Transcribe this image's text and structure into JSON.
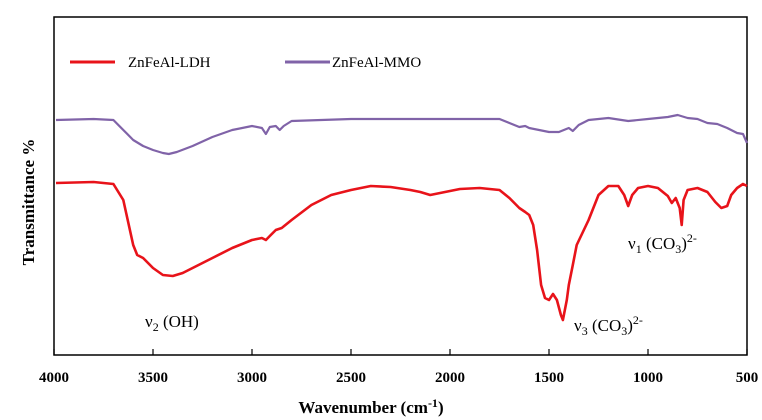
{
  "chart_data": {
    "type": "line",
    "xlabel_main": "Wavenumber (cm",
    "xlabel_sup": "-1",
    "xlabel_end": ")",
    "ylabel": "Transmittance %",
    "xlim": [
      4000,
      500
    ],
    "x_reversed": true,
    "xticks": [
      4000,
      3500,
      3000,
      2500,
      2000,
      1500,
      1000,
      500
    ],
    "yticks_shown": false,
    "grid": false,
    "legend_position": "top-left",
    "series": [
      {
        "name": "ZnFeAl-LDH",
        "color": "#e8131a",
        "points": [
          [
            3990,
            183
          ],
          [
            3800,
            182
          ],
          [
            3700,
            184
          ],
          [
            3650,
            200
          ],
          [
            3600,
            245
          ],
          [
            3580,
            255
          ],
          [
            3550,
            258
          ],
          [
            3500,
            268
          ],
          [
            3450,
            275
          ],
          [
            3400,
            276
          ],
          [
            3350,
            273
          ],
          [
            3300,
            268
          ],
          [
            3200,
            258
          ],
          [
            3100,
            248
          ],
          [
            3000,
            240
          ],
          [
            2950,
            238
          ],
          [
            2930,
            240
          ],
          [
            2910,
            236
          ],
          [
            2880,
            230
          ],
          [
            2850,
            228
          ],
          [
            2800,
            220
          ],
          [
            2700,
            205
          ],
          [
            2600,
            195
          ],
          [
            2500,
            190
          ],
          [
            2400,
            186
          ],
          [
            2300,
            187
          ],
          [
            2200,
            190
          ],
          [
            2150,
            192
          ],
          [
            2100,
            195
          ],
          [
            2050,
            193
          ],
          [
            1950,
            189
          ],
          [
            1850,
            188
          ],
          [
            1750,
            190
          ],
          [
            1700,
            198
          ],
          [
            1650,
            208
          ],
          [
            1620,
            212
          ],
          [
            1600,
            215
          ],
          [
            1580,
            225
          ],
          [
            1560,
            250
          ],
          [
            1540,
            285
          ],
          [
            1520,
            298
          ],
          [
            1500,
            300
          ],
          [
            1480,
            294
          ],
          [
            1460,
            300
          ],
          [
            1440,
            315
          ],
          [
            1430,
            320
          ],
          [
            1410,
            300
          ],
          [
            1400,
            285
          ],
          [
            1390,
            275
          ],
          [
            1380,
            265
          ],
          [
            1360,
            245
          ],
          [
            1300,
            220
          ],
          [
            1250,
            195
          ],
          [
            1200,
            186
          ],
          [
            1150,
            186
          ],
          [
            1120,
            195
          ],
          [
            1100,
            206
          ],
          [
            1080,
            195
          ],
          [
            1050,
            188
          ],
          [
            1000,
            186
          ],
          [
            950,
            188
          ],
          [
            900,
            196
          ],
          [
            880,
            203
          ],
          [
            860,
            198
          ],
          [
            840,
            208
          ],
          [
            830,
            225
          ],
          [
            820,
            200
          ],
          [
            800,
            190
          ],
          [
            750,
            188
          ],
          [
            700,
            192
          ],
          [
            660,
            202
          ],
          [
            630,
            208
          ],
          [
            600,
            206
          ],
          [
            580,
            195
          ],
          [
            550,
            188
          ],
          [
            520,
            184
          ],
          [
            500,
            186
          ]
        ]
      },
      {
        "name": "ZnFeAl-MMO",
        "color": "#8063a8",
        "points": [
          [
            3990,
            120
          ],
          [
            3800,
            119
          ],
          [
            3700,
            120
          ],
          [
            3650,
            130
          ],
          [
            3600,
            140
          ],
          [
            3550,
            146
          ],
          [
            3500,
            150
          ],
          [
            3450,
            153
          ],
          [
            3420,
            154
          ],
          [
            3380,
            152
          ],
          [
            3300,
            146
          ],
          [
            3200,
            137
          ],
          [
            3100,
            130
          ],
          [
            3000,
            126
          ],
          [
            2950,
            128
          ],
          [
            2930,
            134
          ],
          [
            2910,
            127
          ],
          [
            2880,
            126
          ],
          [
            2860,
            130
          ],
          [
            2840,
            126
          ],
          [
            2800,
            121
          ],
          [
            2500,
            119
          ],
          [
            2000,
            119
          ],
          [
            1750,
            119
          ],
          [
            1700,
            123
          ],
          [
            1650,
            127
          ],
          [
            1620,
            126
          ],
          [
            1600,
            128
          ],
          [
            1550,
            130
          ],
          [
            1500,
            132
          ],
          [
            1450,
            132
          ],
          [
            1400,
            128
          ],
          [
            1380,
            131
          ],
          [
            1350,
            125
          ],
          [
            1300,
            120
          ],
          [
            1200,
            118
          ],
          [
            1100,
            121
          ],
          [
            1000,
            119
          ],
          [
            900,
            117
          ],
          [
            850,
            115
          ],
          [
            800,
            118
          ],
          [
            750,
            119
          ],
          [
            700,
            123
          ],
          [
            650,
            124
          ],
          [
            600,
            128
          ],
          [
            550,
            133
          ],
          [
            520,
            134
          ],
          [
            500,
            143
          ]
        ]
      }
    ],
    "annotations": [
      {
        "label": "ν",
        "sub": "2",
        "rest": " (OH)",
        "sup": ""
      },
      {
        "label": "ν",
        "sub": "3",
        "rest": " (CO",
        "sub2": "3",
        "tail": ")",
        "sup": "2-"
      },
      {
        "label": "ν",
        "sub": "1",
        "rest": " (CO",
        "sub2": "3",
        "tail": ")",
        "sup": "2-"
      }
    ]
  }
}
